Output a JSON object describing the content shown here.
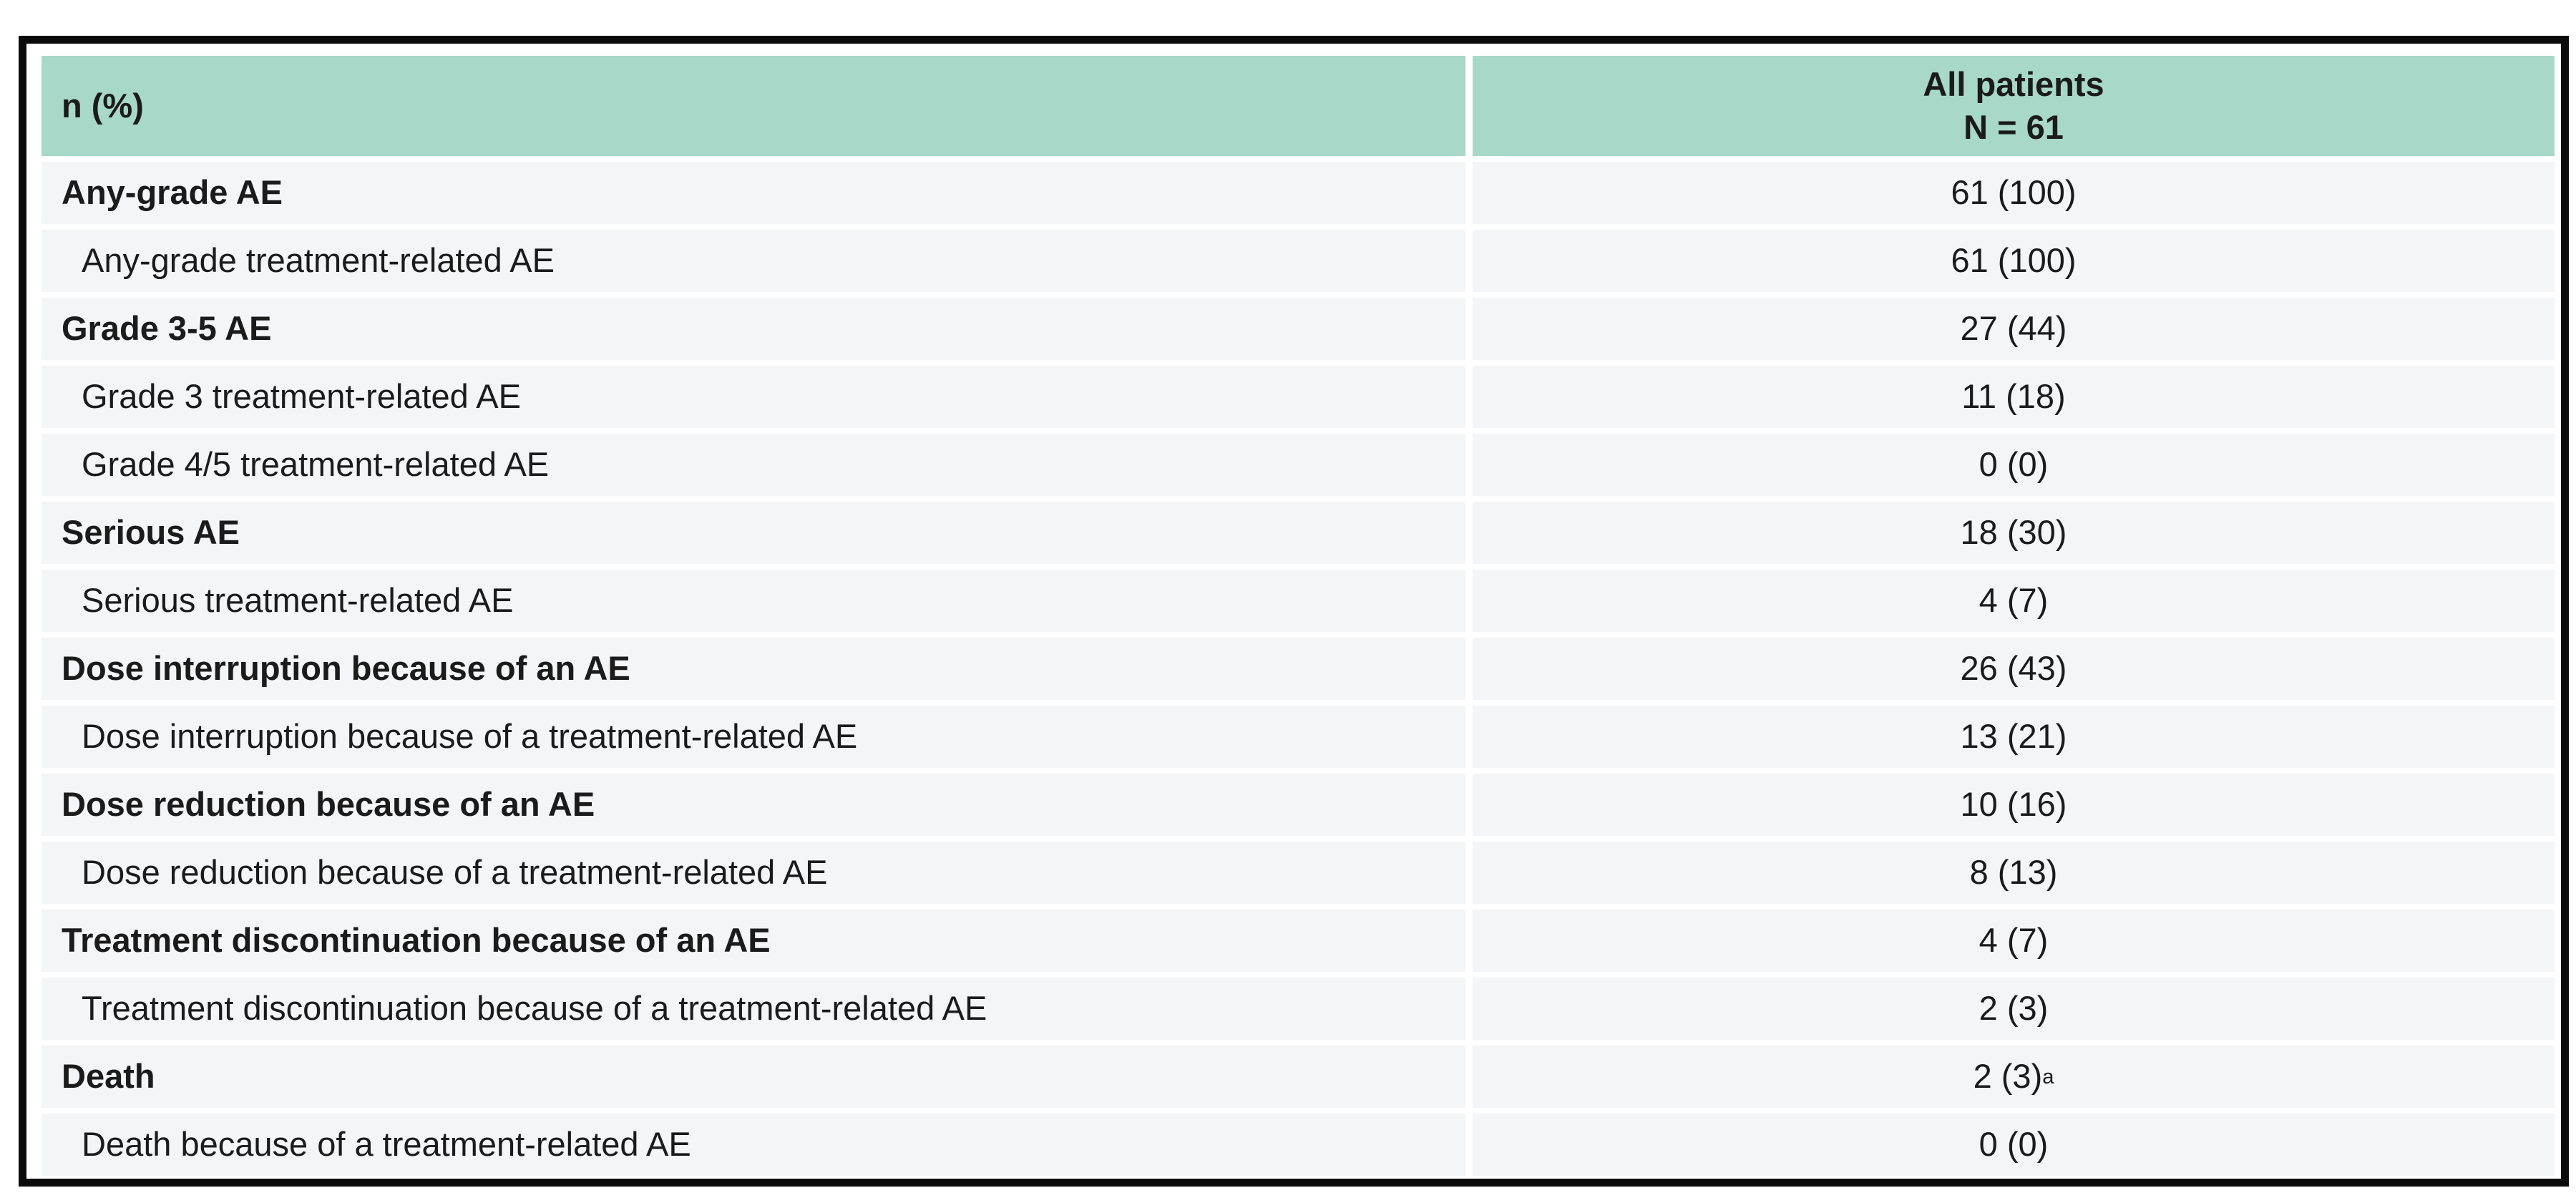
{
  "table": {
    "header": {
      "col1": "n (%)",
      "col2_line1": "All patients",
      "col2_line2": "N = 61"
    },
    "rows": [
      {
        "label": "Any-grade AE",
        "value": "61 (100)",
        "bold": true,
        "indent": false
      },
      {
        "label": "Any-grade treatment-related AE",
        "value": "61 (100)",
        "bold": false,
        "indent": true
      },
      {
        "label": "Grade 3-5 AE",
        "value": "27 (44)",
        "bold": true,
        "indent": false
      },
      {
        "label": "Grade 3 treatment-related AE",
        "value": "11 (18)",
        "bold": false,
        "indent": true
      },
      {
        "label": "Grade 4/5 treatment-related AE",
        "value": "0 (0)",
        "bold": false,
        "indent": true
      },
      {
        "label": "Serious AE",
        "value": "18 (30)",
        "bold": true,
        "indent": false
      },
      {
        "label": "Serious treatment-related AE",
        "value": "4 (7)",
        "bold": false,
        "indent": true
      },
      {
        "label": "Dose interruption because of an AE",
        "value": "26 (43)",
        "bold": true,
        "indent": false
      },
      {
        "label": "Dose interruption because of a treatment-related AE",
        "value": "13 (21)",
        "bold": false,
        "indent": true
      },
      {
        "label": "Dose reduction because of an AE",
        "value": "10 (16)",
        "bold": true,
        "indent": false
      },
      {
        "label": "Dose reduction because of a treatment-related AE",
        "value": "8 (13)",
        "bold": false,
        "indent": true
      },
      {
        "label": "Treatment discontinuation because of an AE",
        "value": "4 (7)",
        "bold": true,
        "indent": false
      },
      {
        "label": "Treatment discontinuation because of a treatment-related AE",
        "value": "2 (3)",
        "bold": false,
        "indent": true
      },
      {
        "label": "Death",
        "value": "2 (3)",
        "value_sup": "a",
        "bold": true,
        "indent": false
      },
      {
        "label": "Death because of a treatment-related AE",
        "value": "0 (0)",
        "bold": false,
        "indent": true
      }
    ],
    "colors": {
      "header_bg": "#a8d8c7",
      "row_bg": "#f4f5f7",
      "border": "#0b0b0b",
      "text": "#1b1b1b"
    }
  }
}
